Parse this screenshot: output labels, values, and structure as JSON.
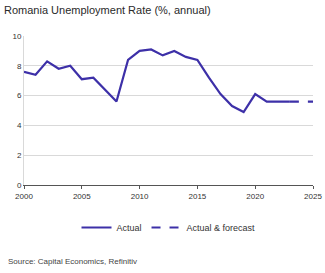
{
  "chart_data": {
    "type": "line",
    "title": "Romania Unemployment Rate (%, annual)",
    "source": "Source: Capital Economics, Refinitiv",
    "x": [
      2000,
      2001,
      2002,
      2003,
      2004,
      2005,
      2006,
      2007,
      2008,
      2009,
      2010,
      2011,
      2012,
      2013,
      2014,
      2015,
      2016,
      2017,
      2018,
      2019,
      2020,
      2021,
      2022,
      2023,
      2024,
      2025
    ],
    "series": [
      {
        "name": "Actual",
        "color": "#3d30a8",
        "line_style": "solid",
        "values": [
          7.6,
          7.4,
          8.3,
          7.8,
          8.0,
          7.1,
          7.2,
          6.4,
          5.6,
          8.4,
          9.0,
          9.1,
          8.7,
          9.0,
          8.6,
          8.4,
          7.2,
          6.1,
          5.3,
          4.9,
          6.1,
          5.6,
          5.6,
          5.6,
          null,
          null
        ]
      },
      {
        "name": "Actual & forecast",
        "color": "#3d30a8",
        "line_style": "dash",
        "values": [
          null,
          null,
          null,
          null,
          null,
          null,
          null,
          null,
          null,
          null,
          null,
          null,
          null,
          null,
          null,
          null,
          null,
          null,
          null,
          null,
          null,
          null,
          null,
          5.6,
          5.6,
          5.6
        ]
      }
    ],
    "xlim": [
      2000,
      2025
    ],
    "xticks": [
      2000,
      2005,
      2010,
      2015,
      2020,
      2025
    ],
    "ylim": [
      0,
      10
    ],
    "yticks": [
      0,
      2,
      4,
      6,
      8,
      10
    ],
    "grid": true,
    "legend": "bottom"
  }
}
